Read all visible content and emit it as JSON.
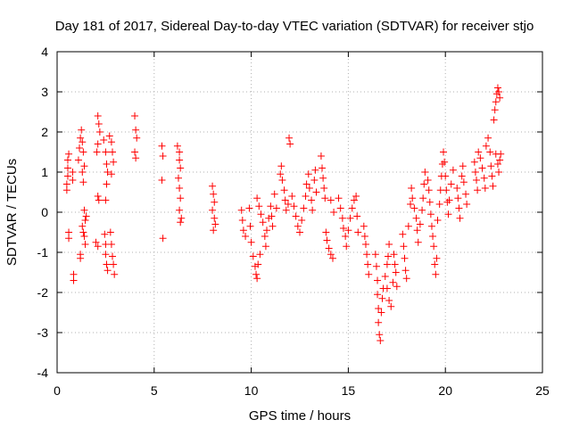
{
  "chart_data": {
    "type": "scatter",
    "title": "Day 181 of 2017, Sidereal Day-to-day VTEC variation (SDTVAR) for receiver stjo",
    "xlabel": "GPS time / hours",
    "ylabel": "SDTVAR / TECUs",
    "xlim": [
      0,
      25
    ],
    "ylim": [
      -4,
      4
    ],
    "xticks": [
      0,
      5,
      10,
      15,
      20,
      25
    ],
    "yticks": [
      -4,
      -3,
      -2,
      -1,
      0,
      1,
      2,
      3,
      4
    ],
    "grid": true,
    "marker": "+",
    "color": "#ff0000",
    "series": [
      {
        "name": "SDTVAR",
        "points": [
          [
            0.5,
            0.55
          ],
          [
            0.5,
            0.7
          ],
          [
            0.55,
            0.9
          ],
          [
            0.55,
            1.1
          ],
          [
            0.55,
            1.3
          ],
          [
            0.6,
            1.45
          ],
          [
            0.6,
            -0.5
          ],
          [
            0.6,
            -0.65
          ],
          [
            0.8,
            1.0
          ],
          [
            0.8,
            0.8
          ],
          [
            0.85,
            -1.55
          ],
          [
            0.85,
            -1.7
          ],
          [
            1.1,
            1.3
          ],
          [
            1.15,
            1.6
          ],
          [
            1.2,
            1.85
          ],
          [
            1.25,
            2.05
          ],
          [
            1.3,
            1.75
          ],
          [
            1.35,
            1.5
          ],
          [
            1.3,
            1.0
          ],
          [
            1.35,
            0.75
          ],
          [
            1.4,
            1.15
          ],
          [
            1.2,
            -1.05
          ],
          [
            1.2,
            -1.15
          ],
          [
            1.3,
            -0.35
          ],
          [
            1.35,
            -0.5
          ],
          [
            1.4,
            -0.6
          ],
          [
            1.45,
            -0.2
          ],
          [
            1.4,
            0.05
          ],
          [
            1.5,
            -0.1
          ],
          [
            1.45,
            -0.8
          ],
          [
            2.1,
            2.4
          ],
          [
            2.15,
            2.2
          ],
          [
            2.2,
            2.0
          ],
          [
            2.1,
            1.7
          ],
          [
            2.05,
            1.5
          ],
          [
            2.1,
            0.4
          ],
          [
            2.15,
            0.3
          ],
          [
            2.0,
            -0.75
          ],
          [
            2.1,
            -0.85
          ],
          [
            2.4,
            1.8
          ],
          [
            2.5,
            1.5
          ],
          [
            2.55,
            1.2
          ],
          [
            2.6,
            1.0
          ],
          [
            2.55,
            0.7
          ],
          [
            2.5,
            0.3
          ],
          [
            2.45,
            -0.55
          ],
          [
            2.5,
            -0.8
          ],
          [
            2.5,
            -1.05
          ],
          [
            2.55,
            -1.3
          ],
          [
            2.6,
            -1.45
          ],
          [
            2.7,
            1.9
          ],
          [
            2.8,
            1.75
          ],
          [
            2.85,
            1.5
          ],
          [
            2.9,
            1.25
          ],
          [
            2.8,
            0.95
          ],
          [
            2.75,
            -0.5
          ],
          [
            2.8,
            -0.8
          ],
          [
            2.85,
            -1.1
          ],
          [
            2.9,
            -1.3
          ],
          [
            2.95,
            -1.55
          ],
          [
            4.0,
            2.4
          ],
          [
            4.05,
            2.05
          ],
          [
            4.1,
            1.85
          ],
          [
            4.0,
            1.5
          ],
          [
            4.05,
            1.35
          ],
          [
            5.4,
            1.65
          ],
          [
            5.45,
            1.4
          ],
          [
            5.4,
            0.8
          ],
          [
            5.45,
            -0.65
          ],
          [
            6.2,
            1.65
          ],
          [
            6.3,
            1.5
          ],
          [
            6.3,
            1.3
          ],
          [
            6.35,
            1.1
          ],
          [
            6.25,
            0.85
          ],
          [
            6.3,
            0.6
          ],
          [
            6.35,
            0.35
          ],
          [
            6.3,
            0.05
          ],
          [
            6.4,
            -0.15
          ],
          [
            6.35,
            -0.25
          ],
          [
            8.0,
            0.65
          ],
          [
            8.05,
            0.45
          ],
          [
            8.1,
            0.25
          ],
          [
            8.0,
            0.05
          ],
          [
            8.1,
            -0.15
          ],
          [
            8.15,
            -0.3
          ],
          [
            8.05,
            -0.45
          ],
          [
            9.5,
            0.05
          ],
          [
            9.55,
            -0.2
          ],
          [
            9.6,
            -0.45
          ],
          [
            9.7,
            -0.6
          ],
          [
            9.9,
            0.1
          ],
          [
            9.95,
            -0.35
          ],
          [
            10.0,
            -0.75
          ],
          [
            10.1,
            -1.1
          ],
          [
            10.2,
            -1.35
          ],
          [
            10.25,
            -1.55
          ],
          [
            10.3,
            -1.65
          ],
          [
            10.35,
            -1.3
          ],
          [
            10.45,
            -1.05
          ],
          [
            10.3,
            0.35
          ],
          [
            10.4,
            0.15
          ],
          [
            10.5,
            -0.05
          ],
          [
            10.6,
            -0.25
          ],
          [
            10.7,
            -0.6
          ],
          [
            10.75,
            -0.85
          ],
          [
            10.8,
            -0.45
          ],
          [
            10.9,
            -0.15
          ],
          [
            11.0,
            0.15
          ],
          [
            11.05,
            -0.1
          ],
          [
            11.1,
            -0.35
          ],
          [
            11.2,
            0.45
          ],
          [
            11.3,
            0.1
          ],
          [
            11.5,
            0.95
          ],
          [
            11.55,
            1.15
          ],
          [
            11.6,
            0.8
          ],
          [
            11.7,
            0.55
          ],
          [
            11.75,
            0.3
          ],
          [
            11.8,
            0.05
          ],
          [
            11.9,
            0.2
          ],
          [
            11.95,
            1.85
          ],
          [
            12.0,
            1.7
          ],
          [
            12.1,
            0.4
          ],
          [
            12.2,
            0.15
          ],
          [
            12.3,
            -0.1
          ],
          [
            12.4,
            -0.35
          ],
          [
            12.5,
            -0.5
          ],
          [
            12.6,
            -0.2
          ],
          [
            12.7,
            0.1
          ],
          [
            12.8,
            0.4
          ],
          [
            12.85,
            0.7
          ],
          [
            12.95,
            0.95
          ],
          [
            13.0,
            0.6
          ],
          [
            13.1,
            0.3
          ],
          [
            13.15,
            0.05
          ],
          [
            13.25,
            0.8
          ],
          [
            13.3,
            1.05
          ],
          [
            13.35,
            0.5
          ],
          [
            13.6,
            1.4
          ],
          [
            13.65,
            1.1
          ],
          [
            13.7,
            0.85
          ],
          [
            13.75,
            0.6
          ],
          [
            13.8,
            0.35
          ],
          [
            13.85,
            -0.5
          ],
          [
            13.9,
            -0.7
          ],
          [
            14.0,
            -0.9
          ],
          [
            14.1,
            -1.05
          ],
          [
            14.2,
            -1.15
          ],
          [
            14.1,
            0.3
          ],
          [
            14.25,
            0.0
          ],
          [
            14.5,
            0.35
          ],
          [
            14.6,
            0.1
          ],
          [
            14.7,
            -0.15
          ],
          [
            14.75,
            -0.4
          ],
          [
            14.85,
            -0.6
          ],
          [
            14.9,
            -0.85
          ],
          [
            15.0,
            -0.45
          ],
          [
            15.1,
            -0.15
          ],
          [
            15.2,
            0.1
          ],
          [
            15.3,
            0.3
          ],
          [
            15.4,
            0.4
          ],
          [
            15.45,
            -0.1
          ],
          [
            15.5,
            -0.5
          ],
          [
            15.8,
            -0.35
          ],
          [
            15.85,
            -0.6
          ],
          [
            15.9,
            -0.8
          ],
          [
            15.95,
            -1.05
          ],
          [
            16.0,
            -1.3
          ],
          [
            16.05,
            -1.55
          ],
          [
            16.4,
            -1.05
          ],
          [
            16.45,
            -1.35
          ],
          [
            16.5,
            -1.7
          ],
          [
            16.5,
            -2.05
          ],
          [
            16.55,
            -2.4
          ],
          [
            16.55,
            -2.75
          ],
          [
            16.6,
            -3.05
          ],
          [
            16.65,
            -3.2
          ],
          [
            16.7,
            -2.5
          ],
          [
            16.75,
            -2.15
          ],
          [
            16.8,
            -1.9
          ],
          [
            16.9,
            -1.6
          ],
          [
            17.0,
            -1.3
          ],
          [
            17.05,
            -1.1
          ],
          [
            17.1,
            -0.8
          ],
          [
            17.0,
            -1.9
          ],
          [
            17.1,
            -2.2
          ],
          [
            17.2,
            -2.35
          ],
          [
            17.3,
            -1.75
          ],
          [
            17.35,
            -1.05
          ],
          [
            17.4,
            -1.3
          ],
          [
            17.45,
            -1.5
          ],
          [
            17.5,
            -1.85
          ],
          [
            17.8,
            -0.55
          ],
          [
            17.85,
            -0.85
          ],
          [
            17.9,
            -1.15
          ],
          [
            17.95,
            -1.45
          ],
          [
            18.0,
            -1.65
          ],
          [
            18.1,
            -0.35
          ],
          [
            18.2,
            0.2
          ],
          [
            18.25,
            0.6
          ],
          [
            18.3,
            0.35
          ],
          [
            18.4,
            0.1
          ],
          [
            18.5,
            -0.15
          ],
          [
            18.55,
            -0.45
          ],
          [
            18.6,
            -0.75
          ],
          [
            18.7,
            -0.3
          ],
          [
            18.8,
            0.05
          ],
          [
            18.85,
            0.35
          ],
          [
            18.9,
            0.7
          ],
          [
            18.95,
            1.0
          ],
          [
            19.1,
            0.8
          ],
          [
            19.15,
            0.55
          ],
          [
            19.2,
            0.25
          ],
          [
            19.25,
            -0.05
          ],
          [
            19.3,
            -0.35
          ],
          [
            19.35,
            -0.6
          ],
          [
            19.4,
            -0.85
          ],
          [
            19.45,
            -1.3
          ],
          [
            19.5,
            -1.55
          ],
          [
            19.55,
            -1.15
          ],
          [
            19.6,
            -0.2
          ],
          [
            19.7,
            0.2
          ],
          [
            19.75,
            0.55
          ],
          [
            19.8,
            0.9
          ],
          [
            19.85,
            1.2
          ],
          [
            19.9,
            1.5
          ],
          [
            19.95,
            1.25
          ],
          [
            20.0,
            0.9
          ],
          [
            20.05,
            0.55
          ],
          [
            20.1,
            0.25
          ],
          [
            20.15,
            -0.05
          ],
          [
            20.2,
            0.3
          ],
          [
            20.3,
            0.7
          ],
          [
            20.4,
            1.05
          ],
          [
            20.6,
            0.6
          ],
          [
            20.65,
            0.35
          ],
          [
            20.7,
            0.1
          ],
          [
            20.75,
            -0.15
          ],
          [
            20.85,
            0.9
          ],
          [
            20.9,
            1.15
          ],
          [
            20.95,
            0.75
          ],
          [
            21.05,
            0.45
          ],
          [
            21.1,
            0.2
          ],
          [
            21.5,
            1.25
          ],
          [
            21.55,
            1.0
          ],
          [
            21.6,
            0.8
          ],
          [
            21.65,
            0.55
          ],
          [
            21.7,
            1.5
          ],
          [
            21.8,
            1.35
          ],
          [
            21.9,
            1.1
          ],
          [
            22.0,
            0.85
          ],
          [
            22.05,
            0.6
          ],
          [
            22.1,
            1.65
          ],
          [
            22.2,
            1.85
          ],
          [
            22.3,
            1.5
          ],
          [
            22.35,
            1.15
          ],
          [
            22.4,
            0.9
          ],
          [
            22.45,
            0.65
          ],
          [
            22.5,
            2.3
          ],
          [
            22.55,
            2.55
          ],
          [
            22.6,
            2.75
          ],
          [
            22.65,
            2.95
          ],
          [
            22.7,
            3.1
          ],
          [
            22.75,
            3.0
          ],
          [
            22.8,
            2.85
          ],
          [
            22.6,
            1.45
          ],
          [
            22.7,
            1.2
          ],
          [
            22.75,
            1.0
          ],
          [
            22.8,
            1.3
          ],
          [
            22.85,
            1.45
          ]
        ]
      }
    ]
  }
}
